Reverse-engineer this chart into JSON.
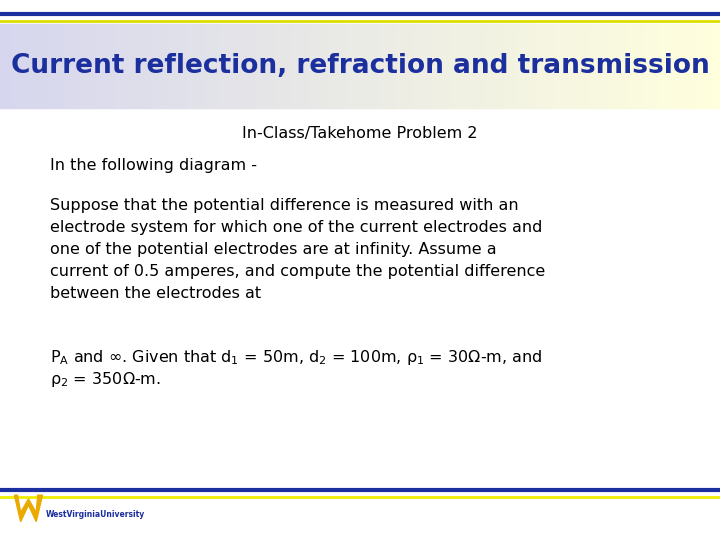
{
  "title": "Current reflection, refraction and transmission",
  "subtitle": "In-Class/Takehome Problem 2",
  "body_line1": "In the following diagram -",
  "body_para1_l1": "Suppose that the potential difference is measured with an",
  "body_para1_l2": "electrode system for which one of the current electrodes and",
  "body_para1_l3": "one of the potential electrodes are at infinity. Assume a",
  "body_para1_l4": "current of 0.5 amperes, and compute the potential difference",
  "body_para1_l5": "between the electrodes at",
  "title_color": "#1c2f9e",
  "title_bg_left": "#d6d6ee",
  "title_bg_right": "#ffffdd",
  "top_line_dark": "#1c2f9e",
  "top_line_yellow": "#dddd00",
  "bottom_line_dark": "#1c2f9e",
  "bottom_line_yellow": "#eeee00",
  "body_text_color": "#000000",
  "subtitle_color": "#000000",
  "bg_color": "#ffffff",
  "title_fontsize": 19,
  "subtitle_fontsize": 11.5,
  "body_fontsize": 11.5,
  "wvu_gold": "#EAAA00",
  "wvu_blue": "#1c2f9e"
}
